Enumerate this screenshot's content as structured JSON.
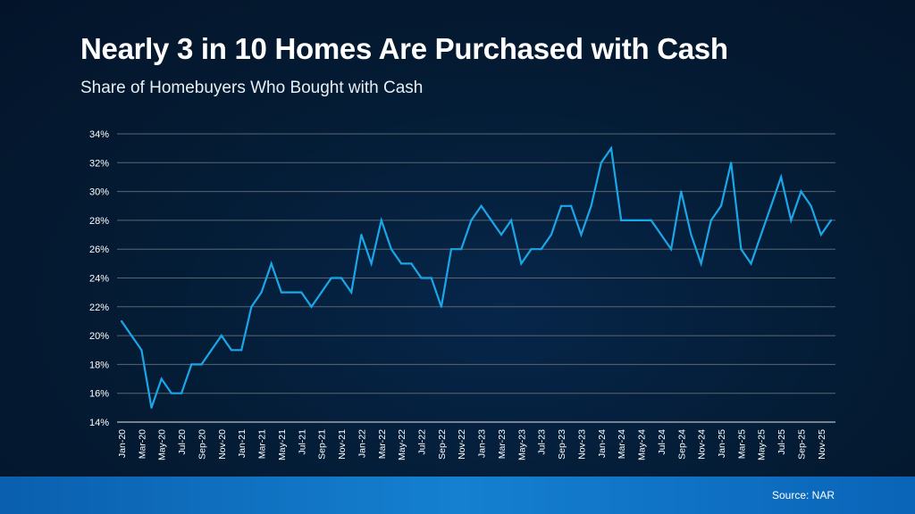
{
  "chart_data": {
    "type": "line",
    "title": "Nearly 3 in 10 Homes Are Purchased with Cash",
    "subtitle": "Share of Homebuyers Who Bought with Cash",
    "xlabel": "",
    "ylabel": "",
    "ylim": [
      14,
      34
    ],
    "yticks": [
      "14%",
      "16%",
      "18%",
      "20%",
      "22%",
      "24%",
      "26%",
      "28%",
      "30%",
      "32%",
      "34%"
    ],
    "grid": true,
    "line_color": "#1aa7e8",
    "x_tick_labels": [
      "Jan-20",
      "Mar-20",
      "May-20",
      "Jul-20",
      "Sep-20",
      "Nov-20",
      "Jan-21",
      "Mar-21",
      "May-21",
      "Jul-21",
      "Sep-21",
      "Nov-21",
      "Jan-22",
      "Mar-22",
      "May-22",
      "Jul-22",
      "Sep-22",
      "Nov-22",
      "Jan-23",
      "Mar-23",
      "May-23",
      "Jul-23",
      "Sep-23",
      "Nov-23",
      "Jan-24",
      "Mar-24",
      "May-24",
      "Jul-24",
      "Sep-24",
      "Nov-24",
      "Jan-25",
      "Mar-25",
      "May-25",
      "Jul-25",
      "Sep-25",
      "Nov-25"
    ],
    "x_start": "Jan-20",
    "x_end": "Dec-25",
    "values": [
      21,
      20,
      19,
      15,
      17,
      16,
      16,
      18,
      18,
      19,
      20,
      19,
      19,
      22,
      23,
      25,
      23,
      23,
      23,
      22,
      23,
      24,
      24,
      23,
      27,
      25,
      28,
      26,
      25,
      25,
      24,
      24,
      22,
      26,
      26,
      28,
      29,
      28,
      27,
      28,
      25,
      26,
      26,
      27,
      29,
      29,
      27,
      29,
      32,
      33,
      28,
      28,
      28,
      28,
      27,
      26,
      30,
      27,
      25,
      28,
      29,
      32,
      26,
      25,
      27,
      29,
      31,
      28,
      30,
      29,
      27,
      28
    ]
  },
  "footer": {
    "source": "Source: NAR"
  }
}
